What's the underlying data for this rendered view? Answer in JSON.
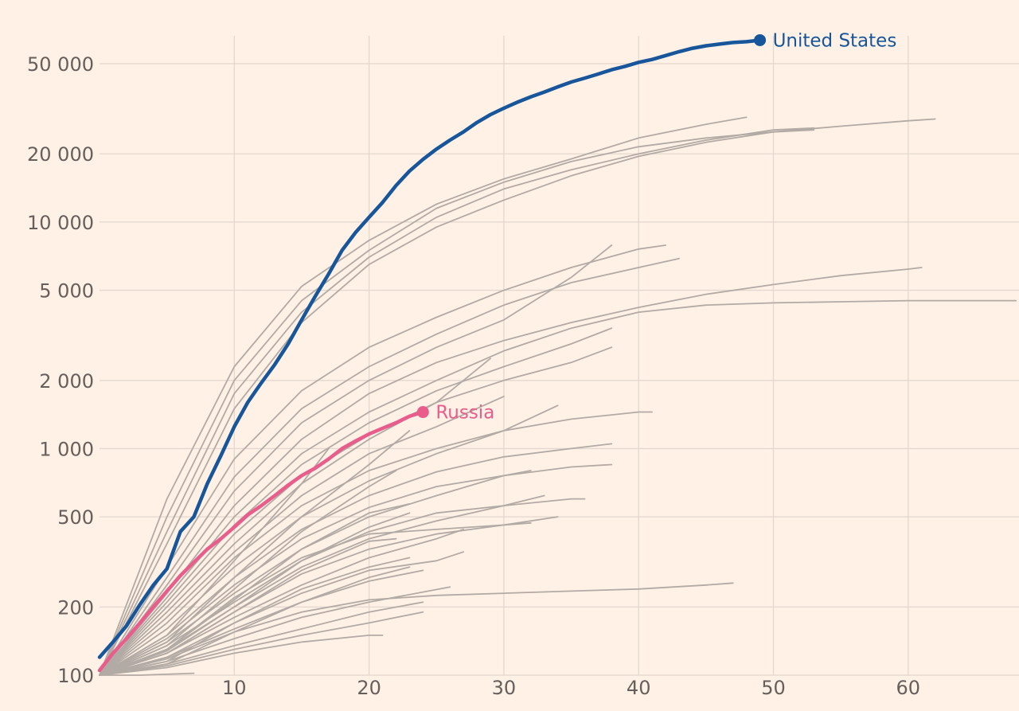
{
  "colors": {
    "background": "#fff1e5",
    "grid": "#e2d8cf",
    "tick_text": "#66605c",
    "highlight_us": "#17569b",
    "highlight_russia": "#e95d8c",
    "context_lines": "#b2aaa4"
  },
  "chart_data": {
    "type": "line",
    "title": "",
    "xlabel": "",
    "ylabel": "",
    "y_scale": "log",
    "xlim": [
      0,
      68
    ],
    "ylim": [
      100,
      66000
    ],
    "grid": true,
    "x_ticks": [
      10,
      20,
      30,
      40,
      50,
      60
    ],
    "x_tick_labels": [
      "10",
      "20",
      "30",
      "40",
      "50",
      "60"
    ],
    "y_ticks": [
      100,
      200,
      500,
      1000,
      2000,
      5000,
      10000,
      20000,
      50000
    ],
    "y_tick_labels": [
      "100",
      "200",
      "500",
      "1 000",
      "2 000",
      "5 000",
      "10 000",
      "20 000",
      "50 000"
    ],
    "series": [
      {
        "name": "United States",
        "highlight": true,
        "color": "#17569b",
        "x": [
          0,
          1,
          2,
          3,
          4,
          5,
          6,
          7,
          8,
          9,
          10,
          11,
          12,
          13,
          14,
          15,
          16,
          17,
          18,
          19,
          20,
          21,
          22,
          23,
          24,
          25,
          26,
          27,
          28,
          29,
          30,
          31,
          32,
          33,
          34,
          35,
          36,
          37,
          38,
          39,
          40,
          41,
          42,
          43,
          44,
          45,
          46,
          47,
          48,
          49
        ],
        "y": [
          120,
          140,
          165,
          205,
          250,
          295,
          430,
          500,
          700,
          930,
          1250,
          1600,
          1950,
          2350,
          2900,
          3700,
          4700,
          5900,
          7500,
          9000,
          10500,
          12200,
          14500,
          16800,
          18900,
          21000,
          23000,
          25000,
          27500,
          29800,
          31800,
          33800,
          35700,
          37500,
          39500,
          41500,
          43200,
          45000,
          47000,
          48700,
          50700,
          52200,
          54300,
          56500,
          58500,
          60000,
          61000,
          62000,
          62500,
          63500
        ]
      },
      {
        "name": "Russia",
        "highlight": true,
        "color": "#e95d8c",
        "x": [
          0,
          1,
          2,
          3,
          4,
          5,
          6,
          7,
          8,
          9,
          10,
          11,
          12,
          13,
          14,
          15,
          16,
          17,
          18,
          19,
          20,
          21,
          22,
          23,
          24
        ],
        "y": [
          105,
          125,
          145,
          170,
          200,
          235,
          275,
          315,
          360,
          400,
          450,
          510,
          560,
          620,
          690,
          760,
          820,
          900,
          1000,
          1080,
          1160,
          1230,
          1300,
          1390,
          1450
        ]
      },
      {
        "name": "",
        "x": [
          0,
          5,
          10,
          15,
          20,
          25,
          30,
          35,
          40,
          45,
          48
        ],
        "y": [
          100,
          600,
          2300,
          5200,
          8300,
          12000,
          15500,
          19000,
          23500,
          27000,
          29000
        ]
      },
      {
        "name": "",
        "x": [
          0,
          5,
          10,
          15,
          20,
          25,
          30,
          35,
          40,
          45,
          50,
          55,
          60,
          62
        ],
        "y": [
          100,
          500,
          2000,
          4500,
          7500,
          11500,
          15000,
          18500,
          21500,
          23500,
          25000,
          26500,
          28000,
          28500
        ]
      },
      {
        "name": "",
        "x": [
          0,
          5,
          10,
          15,
          20,
          25,
          30,
          35,
          40,
          45,
          50,
          53
        ],
        "y": [
          100,
          430,
          1750,
          4000,
          7000,
          10500,
          14000,
          17000,
          20000,
          23000,
          25500,
          26000
        ]
      },
      {
        "name": "",
        "x": [
          0,
          5,
          10,
          15,
          20,
          25,
          30,
          35,
          40,
          45,
          50,
          53
        ],
        "y": [
          100,
          380,
          1500,
          3600,
          6500,
          9500,
          12500,
          16000,
          19500,
          22500,
          25000,
          25500
        ]
      },
      {
        "name": "",
        "x": [
          0,
          5,
          10,
          15,
          20,
          25,
          30,
          35,
          40,
          42
        ],
        "y": [
          100,
          300,
          900,
          1800,
          2800,
          3800,
          5000,
          6300,
          7600,
          7900
        ]
      },
      {
        "name": "",
        "x": [
          0,
          5,
          10,
          15,
          20,
          25,
          30,
          35,
          40,
          43
        ],
        "y": [
          100,
          270,
          750,
          1500,
          2300,
          3200,
          4300,
          5400,
          6300,
          6900
        ]
      },
      {
        "name": "",
        "x": [
          0,
          5,
          10,
          15,
          20,
          25,
          30,
          35,
          38
        ],
        "y": [
          100,
          250,
          650,
          1300,
          2000,
          2800,
          3700,
          5700,
          7900
        ]
      },
      {
        "name": "",
        "x": [
          0,
          5,
          10,
          15,
          20,
          25,
          30,
          35,
          40,
          45,
          50,
          55,
          60,
          61
        ],
        "y": [
          100,
          230,
          560,
          1100,
          1750,
          2400,
          3000,
          3600,
          4200,
          4800,
          5300,
          5800,
          6200,
          6300
        ]
      },
      {
        "name": "",
        "x": [
          0,
          5,
          10,
          15,
          20,
          25,
          30,
          35,
          40,
          45,
          50,
          55,
          60,
          68
        ],
        "y": [
          100,
          220,
          500,
          950,
          1450,
          2000,
          2700,
          3400,
          4000,
          4300,
          4400,
          4450,
          4500,
          4500
        ]
      },
      {
        "name": "",
        "x": [
          0,
          5,
          10,
          15,
          20,
          25,
          30,
          35,
          38
        ],
        "y": [
          100,
          210,
          460,
          850,
          1300,
          1800,
          2300,
          2900,
          3400
        ]
      },
      {
        "name": "",
        "x": [
          0,
          5,
          10,
          15,
          20,
          25,
          30,
          35,
          38
        ],
        "y": [
          100,
          200,
          420,
          760,
          1150,
          1600,
          2000,
          2400,
          2800
        ]
      },
      {
        "name": "",
        "x": [
          0,
          5,
          10,
          15,
          20,
          25,
          29
        ],
        "y": [
          100,
          190,
          380,
          700,
          1100,
          1600,
          2500
        ]
      },
      {
        "name": "",
        "x": [
          0,
          5,
          10,
          15,
          20,
          25,
          30
        ],
        "y": [
          100,
          180,
          350,
          620,
          950,
          1250,
          1700
        ]
      },
      {
        "name": "",
        "x": [
          0,
          5,
          10,
          15,
          20,
          25,
          30,
          35,
          40,
          41
        ],
        "y": [
          100,
          170,
          330,
          560,
          800,
          1000,
          1200,
          1350,
          1450,
          1450
        ]
      },
      {
        "name": "",
        "x": [
          0,
          5,
          10,
          15,
          20,
          25,
          30,
          34
        ],
        "y": [
          100,
          160,
          300,
          500,
          720,
          950,
          1200,
          1550
        ]
      },
      {
        "name": "",
        "x": [
          0,
          5,
          10,
          15,
          20,
          25,
          30,
          35,
          38
        ],
        "y": [
          100,
          150,
          270,
          440,
          620,
          790,
          920,
          1000,
          1050
        ]
      },
      {
        "name": "",
        "x": [
          0,
          5,
          10,
          15,
          20,
          25,
          30,
          35,
          38
        ],
        "y": [
          100,
          145,
          250,
          400,
          550,
          680,
          760,
          830,
          850
        ]
      },
      {
        "name": "",
        "x": [
          0,
          5,
          10,
          15,
          20,
          25,
          30,
          32
        ],
        "y": [
          100,
          140,
          230,
          360,
          500,
          620,
          760,
          800
        ]
      },
      {
        "name": "",
        "x": [
          0,
          5,
          10,
          15,
          20,
          25,
          30,
          35,
          36
        ],
        "y": [
          100,
          135,
          210,
          320,
          430,
          520,
          560,
          600,
          600
        ]
      },
      {
        "name": "",
        "x": [
          0,
          5,
          10,
          15,
          20,
          25,
          30,
          33
        ],
        "y": [
          100,
          130,
          200,
          300,
          400,
          480,
          560,
          620
        ]
      },
      {
        "name": "",
        "x": [
          0,
          5,
          10,
          15,
          20,
          25,
          30,
          34
        ],
        "y": [
          100,
          125,
          190,
          280,
          360,
          420,
          460,
          500
        ]
      },
      {
        "name": "",
        "x": [
          0,
          5,
          10,
          15,
          20,
          25,
          30,
          32
        ],
        "y": [
          100,
          130,
          220,
          330,
          420,
          440,
          460,
          470
        ]
      },
      {
        "name": "",
        "x": [
          0,
          5,
          10,
          15,
          20,
          25,
          27
        ],
        "y": [
          100,
          125,
          180,
          250,
          330,
          400,
          440
        ]
      },
      {
        "name": "",
        "x": [
          0,
          5,
          10,
          15,
          20,
          25,
          27
        ],
        "y": [
          100,
          120,
          170,
          230,
          290,
          320,
          350
        ]
      },
      {
        "name": "",
        "x": [
          0,
          5,
          10,
          15,
          20,
          23
        ],
        "y": [
          100,
          120,
          160,
          210,
          270,
          300
        ]
      },
      {
        "name": "",
        "x": [
          0,
          5,
          10,
          15,
          20,
          25,
          30,
          35,
          40,
          45,
          47
        ],
        "y": [
          100,
          118,
          155,
          190,
          215,
          225,
          230,
          235,
          240,
          250,
          255
        ]
      },
      {
        "name": "",
        "x": [
          0,
          5,
          10,
          15,
          20,
          26
        ],
        "y": [
          100,
          115,
          145,
          180,
          210,
          245
        ]
      },
      {
        "name": "",
        "x": [
          0,
          5,
          10,
          15,
          20,
          24
        ],
        "y": [
          100,
          112,
          135,
          160,
          190,
          210
        ]
      },
      {
        "name": "",
        "x": [
          0,
          5,
          10,
          15,
          20,
          24
        ],
        "y": [
          100,
          110,
          130,
          150,
          170,
          190
        ]
      },
      {
        "name": "",
        "x": [
          0,
          5,
          10,
          15,
          20,
          21
        ],
        "y": [
          100,
          108,
          125,
          140,
          150,
          150
        ]
      },
      {
        "name": "",
        "x": [
          0,
          5,
          10,
          15,
          17
        ],
        "y": [
          100,
          150,
          320,
          700,
          1000
        ]
      },
      {
        "name": "",
        "x": [
          0,
          5,
          10,
          15,
          20,
          23
        ],
        "y": [
          100,
          140,
          270,
          500,
          850,
          1200
        ]
      },
      {
        "name": "",
        "x": [
          0,
          5,
          10,
          15,
          20,
          22
        ],
        "y": [
          100,
          135,
          240,
          430,
          680,
          800
        ]
      },
      {
        "name": "",
        "x": [
          0,
          5,
          10,
          15,
          20,
          23
        ],
        "y": [
          100,
          130,
          215,
          360,
          520,
          570
        ]
      },
      {
        "name": "",
        "x": [
          0,
          5,
          10,
          15,
          20,
          23
        ],
        "y": [
          100,
          128,
          200,
          320,
          450,
          520
        ]
      },
      {
        "name": "",
        "x": [
          0,
          5,
          10,
          15,
          20,
          22
        ],
        "y": [
          100,
          125,
          190,
          290,
          390,
          400
        ]
      },
      {
        "name": "",
        "x": [
          0,
          5,
          10,
          15,
          20,
          23
        ],
        "y": [
          100,
          115,
          170,
          240,
          300,
          330
        ]
      },
      {
        "name": "",
        "x": [
          0,
          5,
          10,
          15,
          20,
          24
        ],
        "y": [
          100,
          112,
          155,
          210,
          260,
          290
        ]
      },
      {
        "name": "",
        "x": [
          0,
          3,
          7
        ],
        "y": [
          100,
          100,
          102
        ]
      }
    ],
    "labels": [
      {
        "text": "United States",
        "series": "United States"
      },
      {
        "text": "Russia",
        "series": "Russia"
      }
    ]
  }
}
